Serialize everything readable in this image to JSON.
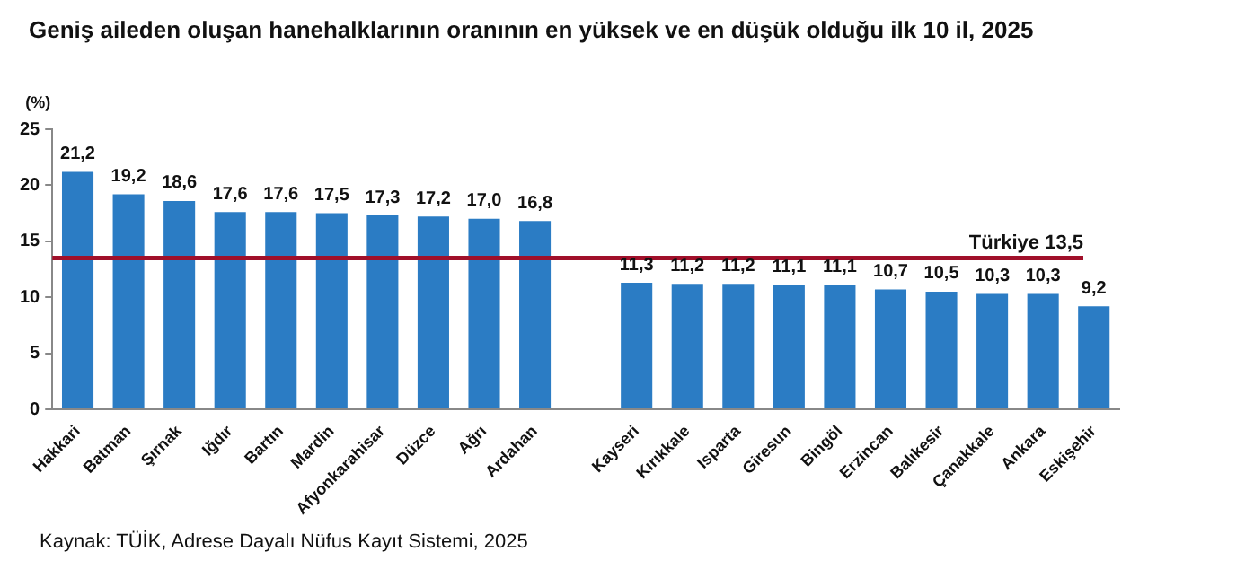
{
  "chart_data": {
    "type": "bar",
    "title": "Geniş aileden oluşan hanehalklarının oranının en yüksek ve en düşük olduğu ilk 10 il, 2025",
    "ylabel": "(%)",
    "categories": [
      "Hakkari",
      "Batman",
      "Şırnak",
      "Iğdır",
      "Bartın",
      "Mardin",
      "Afyonkarahisar",
      "Düzce",
      "Ağrı",
      "Ardahan",
      null,
      "Kayseri",
      "Kırıkkale",
      "Isparta",
      "Giresun",
      "Bingöl",
      "Erzincan",
      "Balıkesir",
      "Çanakkale",
      "Ankara",
      "Eskişehir"
    ],
    "values": [
      21.2,
      19.2,
      18.6,
      17.6,
      17.6,
      17.5,
      17.3,
      17.2,
      17.0,
      16.8,
      null,
      11.3,
      11.2,
      11.2,
      11.1,
      11.1,
      10.7,
      10.5,
      10.3,
      10.3,
      9.2
    ],
    "value_labels": [
      "21,2",
      "19,2",
      "18,6",
      "17,6",
      "17,6",
      "17,5",
      "17,3",
      "17,2",
      "17,0",
      "16,8",
      null,
      "11,3",
      "11,2",
      "11,2",
      "11,1",
      "11,1",
      "10,7",
      "10,5",
      "10,3",
      "10,3",
      "9,2"
    ],
    "color": "#2b7cc4",
    "ylim": [
      0,
      25
    ],
    "yticks": [
      0,
      5,
      10,
      15,
      20,
      25
    ],
    "ref_lines": [
      {
        "axis": "y",
        "value": 13.5,
        "label": "Türkiye 13,5",
        "color": "#a0102a"
      }
    ],
    "grid": false,
    "legend": false,
    "annotations": [
      "Kaynak: TÜİK, Adrese Dayalı Nüfus Kayıt Sistemi, 2025"
    ]
  }
}
